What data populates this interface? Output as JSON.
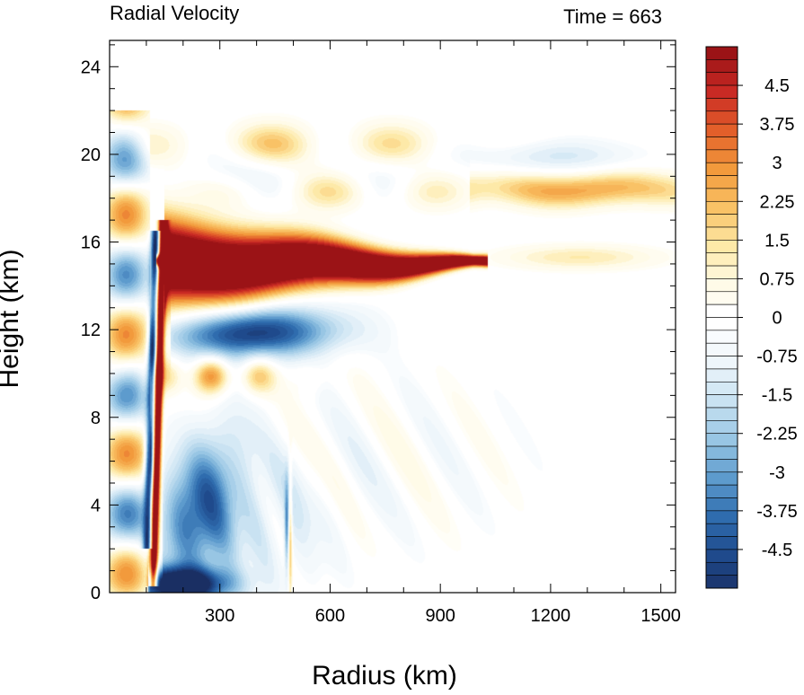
{
  "chart_data": {
    "type": "heatmap",
    "title_left": "Radial Velocity",
    "title_right": "Time = 663",
    "xlabel": "Radius (km)",
    "ylabel": "Height (km)",
    "xlim": [
      0,
      1540
    ],
    "ylim": [
      0,
      25.2
    ],
    "x_ticks": [
      300,
      600,
      900,
      1200,
      1500
    ],
    "y_ticks": [
      0,
      4,
      8,
      12,
      16,
      20,
      24
    ],
    "colorbar": {
      "min": -5.25,
      "max": 5.25,
      "step": 0.25,
      "tick_labels": [
        "4.5",
        "3.75",
        "3",
        "2.25",
        "1.5",
        "0.75",
        "0",
        "-0.75",
        "-1.5",
        "-2.25",
        "-3",
        "-3.75",
        "-4.5"
      ],
      "tick_values": [
        4.5,
        3.75,
        3,
        2.25,
        1.5,
        0.75,
        0,
        -0.75,
        -1.5,
        -2.25,
        -3,
        -3.75,
        -4.5
      ]
    },
    "colormap": {
      "positive": [
        "#fffbe8",
        "#fde9a8",
        "#f9c266",
        "#f29a3c",
        "#e35f2a",
        "#c92a24",
        "#9b1316"
      ],
      "negative": [
        "#eef6fb",
        "#c9e2f2",
        "#98c6e4",
        "#5d9bcd",
        "#2f6cae",
        "#1f4a8c",
        "#1a2f63"
      ]
    },
    "features": [
      {
        "name": "upper-level outflow jet",
        "sign": "positive",
        "r_range": [
          130,
          1020
        ],
        "z_center": 15.0,
        "max": 5.25
      },
      {
        "name": "inflow layer below outflow",
        "sign": "negative",
        "r_range": [
          180,
          600
        ],
        "z_center": 11.8,
        "min": -4.5
      },
      {
        "name": "near-surface inflow",
        "sign": "negative",
        "r_range": [
          100,
          300
        ],
        "z_center": 0.4,
        "min": -5.25
      },
      {
        "name": "eyewall updraft band",
        "sign": "positive",
        "r_range": [
          110,
          145
        ],
        "z_center": 7.0,
        "max": 5.25
      },
      {
        "name": "stratospheric outflow band",
        "sign": "positive",
        "r_range": [
          1000,
          1500
        ],
        "z_center": 18.5,
        "max": 2.25
      }
    ]
  }
}
